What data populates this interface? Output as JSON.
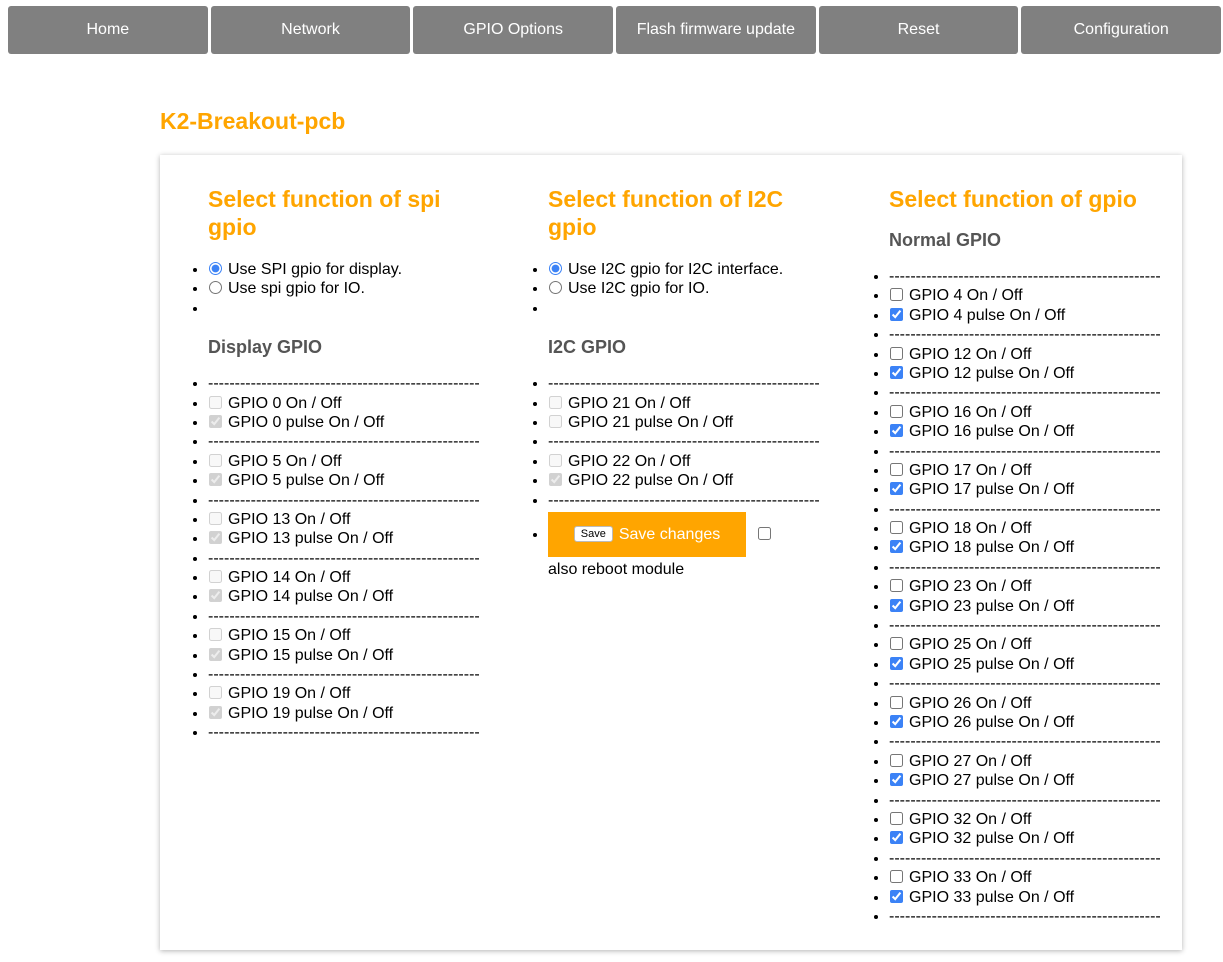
{
  "nav": [
    "Home",
    "Network",
    "GPIO Options",
    "Flash firmware update",
    "Reset",
    "Configuration"
  ],
  "title": "K2-Breakout-pcb",
  "divider": "---------------------------------------------------",
  "accent": "#FFA500",
  "spi": {
    "heading": "Select function of spi gpio",
    "options": [
      {
        "label": "Use SPI gpio for display.",
        "checked": true
      },
      {
        "label": "Use spi gpio for IO.",
        "checked": false
      }
    ],
    "subheading": "Display GPIO",
    "disabled": true,
    "groups": [
      {
        "on": "GPIO 0 On / Off",
        "pulse": "GPIO 0 pulse On / Off",
        "on_checked": false,
        "pulse_checked": true
      },
      {
        "on": "GPIO 5 On / Off",
        "pulse": "GPIO 5 pulse On / Off",
        "on_checked": false,
        "pulse_checked": true
      },
      {
        "on": "GPIO 13 On / Off",
        "pulse": "GPIO 13 pulse On / Off",
        "on_checked": false,
        "pulse_checked": true
      },
      {
        "on": "GPIO 14 On / Off",
        "pulse": "GPIO 14 pulse On / Off",
        "on_checked": false,
        "pulse_checked": true
      },
      {
        "on": "GPIO 15 On / Off",
        "pulse": "GPIO 15 pulse On / Off",
        "on_checked": false,
        "pulse_checked": true
      },
      {
        "on": "GPIO 19 On / Off",
        "pulse": "GPIO 19 pulse On / Off",
        "on_checked": false,
        "pulse_checked": true
      }
    ]
  },
  "i2c": {
    "heading": "Select function of I2C gpio",
    "options": [
      {
        "label": "Use I2C gpio for I2C interface.",
        "checked": true
      },
      {
        "label": "Use I2C gpio for IO.",
        "checked": false
      }
    ],
    "subheading": "I2C GPIO",
    "disabled": true,
    "groups": [
      {
        "on": "GPIO 21 On / Off",
        "pulse": "GPIO 21 pulse On / Off",
        "on_checked": false,
        "pulse_checked": false
      },
      {
        "on": "GPIO 22 On / Off",
        "pulse": "GPIO 22 pulse On / Off",
        "on_checked": false,
        "pulse_checked": true
      }
    ],
    "save": {
      "button": "Save",
      "label": "Save changes",
      "reboot": "also reboot module",
      "reboot_checked": false
    }
  },
  "gpio": {
    "heading": "Select function of gpio",
    "subheading": "Normal GPIO",
    "disabled": false,
    "groups": [
      {
        "on": "GPIO 4 On / Off",
        "pulse": "GPIO 4 pulse On / Off",
        "on_checked": false,
        "pulse_checked": true
      },
      {
        "on": "GPIO 12 On / Off",
        "pulse": "GPIO 12 pulse On / Off",
        "on_checked": false,
        "pulse_checked": true
      },
      {
        "on": "GPIO 16 On / Off",
        "pulse": "GPIO 16 pulse On / Off",
        "on_checked": false,
        "pulse_checked": true
      },
      {
        "on": "GPIO 17 On / Off",
        "pulse": "GPIO 17 pulse On / Off",
        "on_checked": false,
        "pulse_checked": true
      },
      {
        "on": "GPIO 18 On / Off",
        "pulse": "GPIO 18 pulse On / Off",
        "on_checked": false,
        "pulse_checked": true
      },
      {
        "on": "GPIO 23 On / Off",
        "pulse": "GPIO 23 pulse On / Off",
        "on_checked": false,
        "pulse_checked": true
      },
      {
        "on": "GPIO 25 On / Off",
        "pulse": "GPIO 25 pulse On / Off",
        "on_checked": false,
        "pulse_checked": true
      },
      {
        "on": "GPIO 26 On / Off",
        "pulse": "GPIO 26 pulse On / Off",
        "on_checked": false,
        "pulse_checked": true
      },
      {
        "on": "GPIO 27 On / Off",
        "pulse": "GPIO 27 pulse On / Off",
        "on_checked": false,
        "pulse_checked": true
      },
      {
        "on": "GPIO 32 On / Off",
        "pulse": "GPIO 32 pulse On / Off",
        "on_checked": false,
        "pulse_checked": true
      },
      {
        "on": "GPIO 33 On / Off",
        "pulse": "GPIO 33 pulse On / Off",
        "on_checked": false,
        "pulse_checked": true
      }
    ]
  }
}
